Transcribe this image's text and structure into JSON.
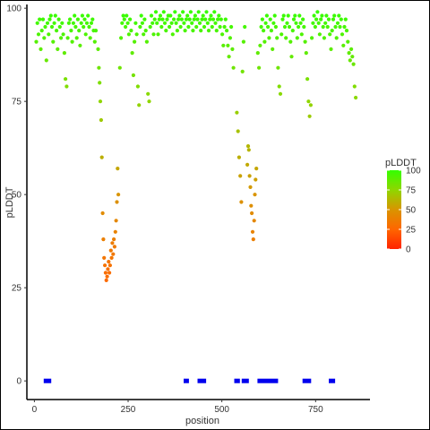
{
  "chart_data": {
    "type": "scatter",
    "title": "",
    "xlabel": "position",
    "ylabel": "pLDDT",
    "xlim": [
      -20,
      895
    ],
    "ylim": [
      -5,
      101
    ],
    "x_ticks": [
      0,
      250,
      500,
      750
    ],
    "y_ticks": [
      0,
      25,
      50,
      75,
      100
    ],
    "grid": false,
    "color_scale": {
      "title": "pLDDT",
      "ticks": [
        0,
        25,
        50,
        75,
        100
      ],
      "low": "#ff2200",
      "high": "#33ff00",
      "legend": "right"
    },
    "segments_color": "#0000ee",
    "segments_y": 0,
    "segments": [
      [
        25,
        45
      ],
      [
        398,
        412
      ],
      [
        435,
        458
      ],
      [
        533,
        548
      ],
      [
        553,
        572
      ],
      [
        595,
        650
      ],
      [
        715,
        738
      ],
      [
        785,
        802
      ]
    ],
    "points": [
      [
        5,
        91
      ],
      [
        8,
        96
      ],
      [
        11,
        93
      ],
      [
        14,
        97
      ],
      [
        17,
        89
      ],
      [
        20,
        94
      ],
      [
        23,
        97
      ],
      [
        26,
        92
      ],
      [
        29,
        95
      ],
      [
        32,
        86
      ],
      [
        35,
        96
      ],
      [
        38,
        93
      ],
      [
        41,
        97
      ],
      [
        44,
        98
      ],
      [
        47,
        95
      ],
      [
        50,
        91
      ],
      [
        53,
        96
      ],
      [
        56,
        98
      ],
      [
        59,
        94
      ],
      [
        62,
        89
      ],
      [
        65,
        97
      ],
      [
        68,
        95
      ],
      [
        71,
        92
      ],
      [
        74,
        96
      ],
      [
        77,
        93
      ],
      [
        80,
        88
      ],
      [
        83,
        81
      ],
      [
        86,
        79
      ],
      [
        89,
        92
      ],
      [
        92,
        96
      ],
      [
        95,
        97
      ],
      [
        98,
        94
      ],
      [
        101,
        91
      ],
      [
        104,
        96
      ],
      [
        107,
        98
      ],
      [
        110,
        95
      ],
      [
        113,
        92
      ],
      [
        116,
        97
      ],
      [
        119,
        94
      ],
      [
        122,
        90
      ],
      [
        125,
        96
      ],
      [
        128,
        98
      ],
      [
        131,
        95
      ],
      [
        134,
        97
      ],
      [
        137,
        93
      ],
      [
        140,
        96
      ],
      [
        143,
        98
      ],
      [
        146,
        95
      ],
      [
        149,
        92
      ],
      [
        152,
        96
      ],
      [
        155,
        97
      ],
      [
        158,
        94
      ],
      [
        161,
        91
      ],
      [
        164,
        94
      ],
      [
        170,
        89
      ],
      [
        172,
        84
      ],
      [
        174,
        80
      ],
      [
        176,
        75
      ],
      [
        178,
        70
      ],
      [
        180,
        60
      ],
      [
        182,
        45
      ],
      [
        184,
        38
      ],
      [
        186,
        33
      ],
      [
        188,
        31
      ],
      [
        190,
        29
      ],
      [
        192,
        27
      ],
      [
        194,
        28
      ],
      [
        196,
        30
      ],
      [
        198,
        32
      ],
      [
        200,
        29
      ],
      [
        202,
        31
      ],
      [
        204,
        35
      ],
      [
        206,
        33
      ],
      [
        208,
        37
      ],
      [
        210,
        34
      ],
      [
        212,
        38
      ],
      [
        214,
        36
      ],
      [
        216,
        40
      ],
      [
        218,
        43
      ],
      [
        220,
        48
      ],
      [
        222,
        57
      ],
      [
        224,
        50
      ],
      [
        228,
        84
      ],
      [
        231,
        92
      ],
      [
        234,
        96
      ],
      [
        237,
        98
      ],
      [
        240,
        97
      ],
      [
        243,
        95
      ],
      [
        246,
        98
      ],
      [
        249,
        96
      ],
      [
        252,
        93
      ],
      [
        255,
        97
      ],
      [
        258,
        94
      ],
      [
        261,
        88
      ],
      [
        264,
        82
      ],
      [
        267,
        91
      ],
      [
        270,
        96
      ],
      [
        273,
        93
      ],
      [
        276,
        79
      ],
      [
        279,
        74
      ],
      [
        282,
        95
      ],
      [
        285,
        98
      ],
      [
        288,
        96
      ],
      [
        291,
        93
      ],
      [
        294,
        97
      ],
      [
        297,
        94
      ],
      [
        300,
        91
      ],
      [
        303,
        77
      ],
      [
        306,
        75
      ],
      [
        309,
        95
      ],
      [
        312,
        98
      ],
      [
        315,
        96
      ],
      [
        318,
        93
      ],
      [
        321,
        97
      ],
      [
        324,
        99
      ],
      [
        327,
        96
      ],
      [
        330,
        93
      ],
      [
        333,
        97
      ],
      [
        336,
        98
      ],
      [
        339,
        95
      ],
      [
        342,
        97
      ],
      [
        345,
        99
      ],
      [
        348,
        96
      ],
      [
        351,
        94
      ],
      [
        354,
        97
      ],
      [
        357,
        98
      ],
      [
        360,
        95
      ],
      [
        363,
        98
      ],
      [
        366,
        96
      ],
      [
        369,
        93
      ],
      [
        372,
        97
      ],
      [
        375,
        99
      ],
      [
        378,
        96
      ],
      [
        381,
        94
      ],
      [
        384,
        97
      ],
      [
        387,
        98
      ],
      [
        390,
        95
      ],
      [
        393,
        97
      ],
      [
        396,
        99
      ],
      [
        399,
        96
      ],
      [
        402,
        94
      ],
      [
        405,
        97
      ],
      [
        408,
        98
      ],
      [
        411,
        95
      ],
      [
        414,
        97
      ],
      [
        417,
        99
      ],
      [
        420,
        96
      ],
      [
        423,
        94
      ],
      [
        426,
        97
      ],
      [
        429,
        98
      ],
      [
        432,
        95
      ],
      [
        435,
        97
      ],
      [
        438,
        99
      ],
      [
        441,
        96
      ],
      [
        444,
        94
      ],
      [
        447,
        97
      ],
      [
        450,
        98
      ],
      [
        453,
        95
      ],
      [
        456,
        97
      ],
      [
        459,
        99
      ],
      [
        462,
        96
      ],
      [
        465,
        94
      ],
      [
        468,
        97
      ],
      [
        471,
        98
      ],
      [
        474,
        95
      ],
      [
        477,
        97
      ],
      [
        480,
        99
      ],
      [
        483,
        96
      ],
      [
        486,
        94
      ],
      [
        489,
        97
      ],
      [
        492,
        98
      ],
      [
        495,
        95
      ],
      [
        498,
        97
      ],
      [
        501,
        93
      ],
      [
        504,
        90
      ],
      [
        507,
        95
      ],
      [
        510,
        97
      ],
      [
        513,
        94
      ],
      [
        516,
        90
      ],
      [
        519,
        87
      ],
      [
        522,
        92
      ],
      [
        525,
        95
      ],
      [
        528,
        89
      ],
      [
        531,
        84
      ],
      [
        540,
        72
      ],
      [
        543,
        67
      ],
      [
        546,
        60
      ],
      [
        549,
        55
      ],
      [
        552,
        48
      ],
      [
        555,
        83
      ],
      [
        558,
        91
      ],
      [
        561,
        95
      ],
      [
        568,
        58
      ],
      [
        570,
        63
      ],
      [
        572,
        62
      ],
      [
        574,
        55
      ],
      [
        576,
        52
      ],
      [
        578,
        47
      ],
      [
        580,
        45
      ],
      [
        582,
        40
      ],
      [
        584,
        38
      ],
      [
        586,
        43
      ],
      [
        588,
        50
      ],
      [
        590,
        54
      ],
      [
        592,
        57
      ],
      [
        596,
        88
      ],
      [
        599,
        84
      ],
      [
        602,
        90
      ],
      [
        605,
        95
      ],
      [
        608,
        97
      ],
      [
        611,
        94
      ],
      [
        614,
        91
      ],
      [
        617,
        96
      ],
      [
        620,
        98
      ],
      [
        623,
        95
      ],
      [
        626,
        92
      ],
      [
        629,
        97
      ],
      [
        632,
        94
      ],
      [
        635,
        89
      ],
      [
        638,
        96
      ],
      [
        641,
        98
      ],
      [
        644,
        95
      ],
      [
        647,
        92
      ],
      [
        650,
        84
      ],
      [
        653,
        79
      ],
      [
        656,
        77
      ],
      [
        659,
        93
      ],
      [
        662,
        97
      ],
      [
        665,
        98
      ],
      [
        668,
        95
      ],
      [
        671,
        92
      ],
      [
        674,
        96
      ],
      [
        677,
        98
      ],
      [
        680,
        95
      ],
      [
        683,
        91
      ],
      [
        686,
        87
      ],
      [
        689,
        94
      ],
      [
        692,
        97
      ],
      [
        695,
        98
      ],
      [
        698,
        96
      ],
      [
        701,
        92
      ],
      [
        704,
        95
      ],
      [
        707,
        98
      ],
      [
        710,
        96
      ],
      [
        713,
        93
      ],
      [
        716,
        97
      ],
      [
        719,
        95
      ],
      [
        722,
        91
      ],
      [
        725,
        88
      ],
      [
        728,
        81
      ],
      [
        731,
        75
      ],
      [
        734,
        71
      ],
      [
        737,
        74
      ],
      [
        740,
        92
      ],
      [
        743,
        96
      ],
      [
        746,
        98
      ],
      [
        749,
        95
      ],
      [
        752,
        97
      ],
      [
        755,
        99
      ],
      [
        758,
        96
      ],
      [
        761,
        93
      ],
      [
        764,
        97
      ],
      [
        767,
        98
      ],
      [
        770,
        95
      ],
      [
        773,
        92
      ],
      [
        776,
        96
      ],
      [
        779,
        98
      ],
      [
        782,
        95
      ],
      [
        785,
        97
      ],
      [
        788,
        93
      ],
      [
        791,
        89
      ],
      [
        794,
        94
      ],
      [
        797,
        97
      ],
      [
        800,
        98
      ],
      [
        803,
        95
      ],
      [
        806,
        92
      ],
      [
        809,
        96
      ],
      [
        812,
        98
      ],
      [
        815,
        95
      ],
      [
        818,
        97
      ],
      [
        821,
        93
      ],
      [
        824,
        90
      ],
      [
        827,
        95
      ],
      [
        830,
        97
      ],
      [
        833,
        94
      ],
      [
        836,
        91
      ],
      [
        839,
        88
      ],
      [
        842,
        86
      ],
      [
        845,
        89
      ],
      [
        848,
        87
      ],
      [
        851,
        85
      ],
      [
        854,
        79
      ],
      [
        857,
        76
      ]
    ]
  }
}
